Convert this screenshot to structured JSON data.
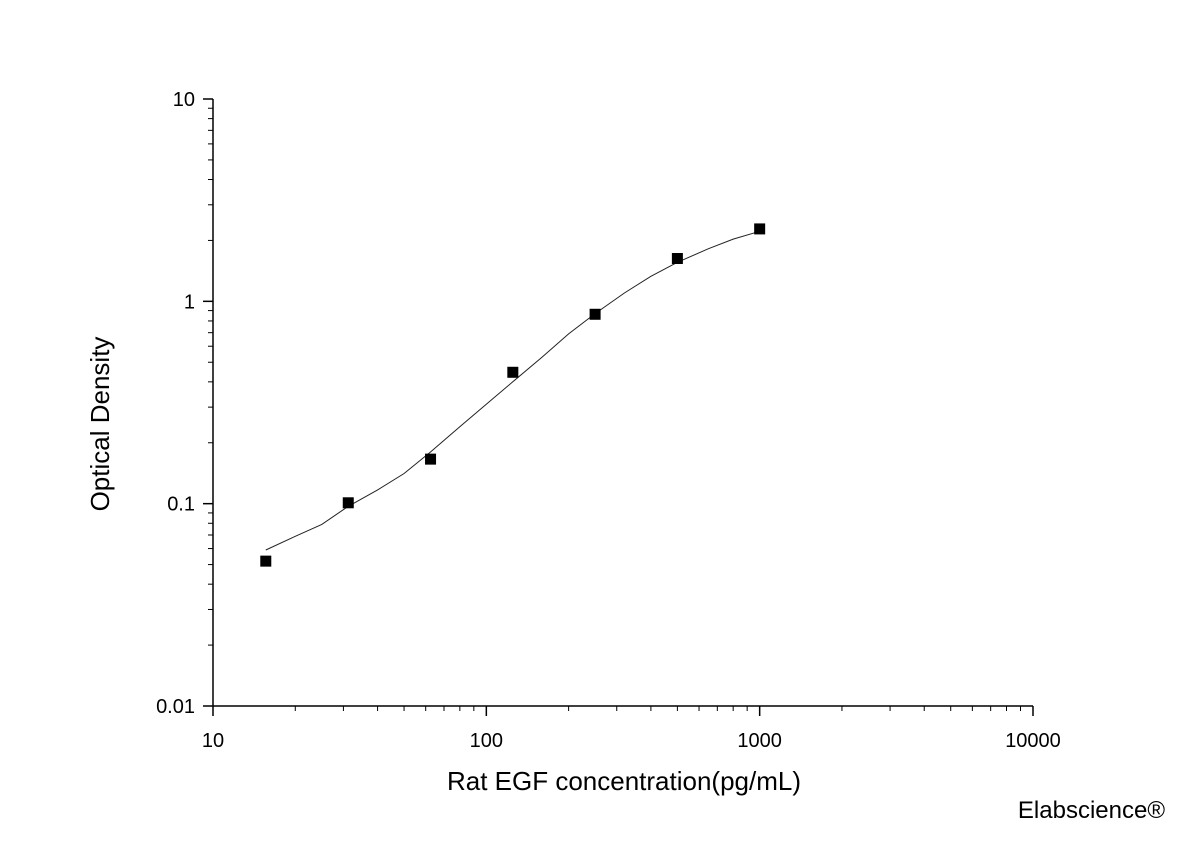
{
  "chart_data": {
    "type": "scatter",
    "title": "",
    "xlabel": "Rat EGF concentration(pg/mL)",
    "ylabel": "Optical Density",
    "x_scale": "log",
    "y_scale": "log",
    "xlim": [
      10,
      10000
    ],
    "ylim": [
      0.01,
      10
    ],
    "x_ticks": [
      "10",
      "100",
      "1000",
      "10000"
    ],
    "y_ticks": [
      "0.01",
      "0.1",
      "1",
      "10"
    ],
    "grid": false,
    "legend": "none",
    "series": [
      {
        "marker": "square",
        "x": [
          15.6,
          31.25,
          62.5,
          125,
          250,
          500,
          1000
        ],
        "y": [
          0.052,
          0.101,
          0.166,
          0.446,
          0.863,
          1.628,
          2.28
        ]
      }
    ],
    "fit_curve": {
      "x": [
        15.6,
        20,
        25,
        31.25,
        40,
        50,
        62.5,
        80,
        100,
        125,
        160,
        200,
        250,
        320,
        400,
        500,
        650,
        800,
        1000
      ],
      "y": [
        0.059,
        0.069,
        0.079,
        0.097,
        0.117,
        0.141,
        0.18,
        0.24,
        0.31,
        0.4,
        0.53,
        0.69,
        0.87,
        1.1,
        1.33,
        1.56,
        1.82,
        2.03,
        2.22
      ]
    }
  },
  "watermark": "Elabscience®"
}
